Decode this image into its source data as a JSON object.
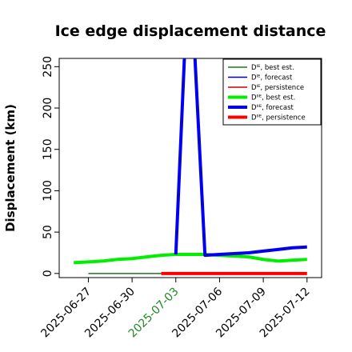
{
  "chart_data": {
    "type": "line",
    "title": "Ice edge displacement distance",
    "xlabel": "",
    "ylabel": "Displacement (km)",
    "xlim": [
      "2025-06-25",
      "2025-07-13"
    ],
    "ylim": [
      -5,
      260
    ],
    "yticks": [
      0,
      50,
      100,
      150,
      200,
      250
    ],
    "xticks": [
      {
        "label": "2025-06-27",
        "x": "2025-06-27",
        "color": "#000000"
      },
      {
        "label": "2025-06-30",
        "x": "2025-06-30",
        "color": "#000000"
      },
      {
        "label": "2025-07-03",
        "x": "2025-07-03",
        "color": "#228B22"
      },
      {
        "label": "2025-07-06",
        "x": "2025-07-06",
        "color": "#000000"
      },
      {
        "label": "2025-07-09",
        "x": "2025-07-09",
        "color": "#000000"
      },
      {
        "label": "2025-07-12",
        "x": "2025-07-12",
        "color": "#000000"
      }
    ],
    "grid": false,
    "legend_position": "top-right",
    "series": [
      {
        "name": "Dᴵᴱ, best est.",
        "color": "#1a7a1a",
        "width": 1.5,
        "x": [
          "2025-06-27",
          "2025-07-03"
        ],
        "y": [
          0,
          0
        ]
      },
      {
        "name": "Dᴵᴱ, forecast",
        "color": "#0000cc",
        "width": 1.5,
        "x": [],
        "y": []
      },
      {
        "name": "Dᴵᴱ, persistence",
        "color": "#cc0000",
        "width": 1.5,
        "x": [],
        "y": []
      },
      {
        "name": "Dᴵᴵᴱ, best est.",
        "color": "#00ee00",
        "width": 4,
        "x": [
          "2025-06-26",
          "2025-06-27",
          "2025-06-28",
          "2025-06-29",
          "2025-06-30",
          "2025-07-01",
          "2025-07-02",
          "2025-07-03",
          "2025-07-04",
          "2025-07-05",
          "2025-07-06",
          "2025-07-07",
          "2025-07-08",
          "2025-07-09",
          "2025-07-10",
          "2025-07-11",
          "2025-07-12"
        ],
        "y": [
          13,
          14,
          15,
          17,
          18,
          20,
          22,
          23,
          23,
          23,
          22,
          21,
          20,
          17,
          15,
          16,
          17
        ]
      },
      {
        "name": "Dᴵᴵᴱ, forecast",
        "color": "#0000ee",
        "width": 4,
        "x": [
          "2025-07-03",
          "2025-07-03.6",
          "2025-07-04.3",
          "2025-07-05",
          "2025-07-06",
          "2025-07-07",
          "2025-07-08",
          "2025-07-09",
          "2025-07-10",
          "2025-07-11",
          "2025-07-12"
        ],
        "y": [
          23,
          265,
          265,
          22,
          23,
          24,
          25,
          27,
          29,
          31,
          32
        ]
      },
      {
        "name": "Dᴵᴵᴱ, persistence",
        "color": "#ff0000",
        "width": 4,
        "x": [
          "2025-07-02",
          "2025-07-12"
        ],
        "y": [
          0,
          0
        ]
      }
    ]
  }
}
